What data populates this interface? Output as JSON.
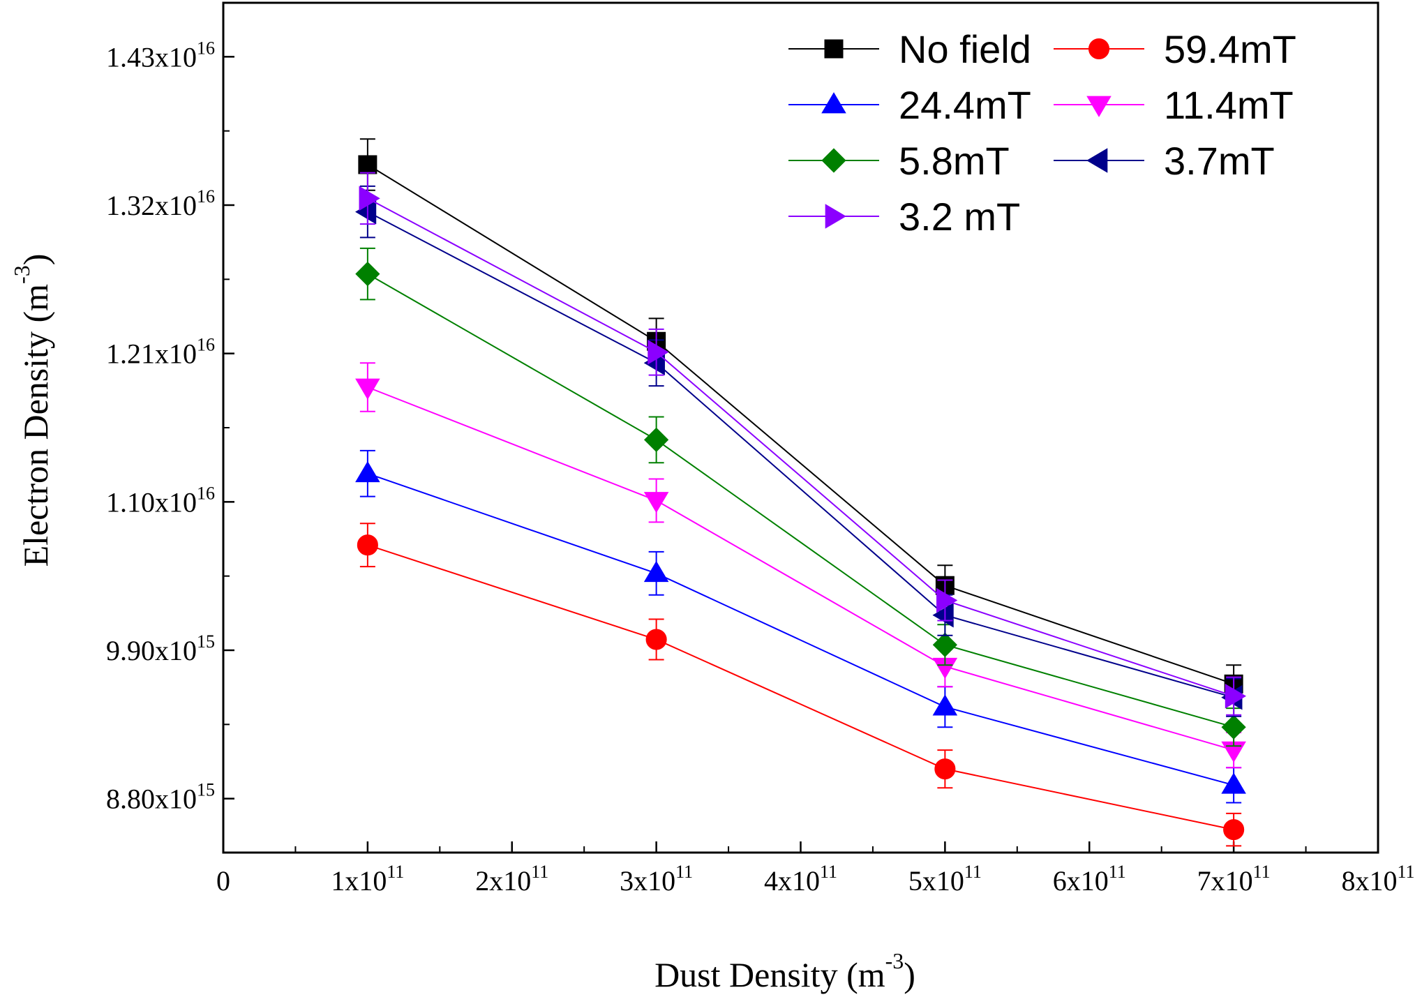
{
  "chart_data": {
    "type": "line",
    "title": "",
    "xlabel": {
      "base": "Dust Density (m",
      "sup": "-3",
      "close": ")"
    },
    "ylabel": {
      "base": "Electron Density (m",
      "sup": "-3",
      "close": ")"
    },
    "xlim": [
      0,
      800000000000.0
    ],
    "ylim": [
      8400000000000000.0,
      1.47e+16
    ],
    "x_ticks": [
      {
        "value": 0,
        "label": "0",
        "exp": ""
      },
      {
        "value": 100000000000.0,
        "label": "1x10",
        "exp": "11"
      },
      {
        "value": 200000000000.0,
        "label": "2x10",
        "exp": "11"
      },
      {
        "value": 300000000000.0,
        "label": "3x10",
        "exp": "11"
      },
      {
        "value": 400000000000.0,
        "label": "4x10",
        "exp": "11"
      },
      {
        "value": 500000000000.0,
        "label": "5x10",
        "exp": "11"
      },
      {
        "value": 600000000000.0,
        "label": "6x10",
        "exp": "11"
      },
      {
        "value": 700000000000.0,
        "label": "7x10",
        "exp": "11"
      },
      {
        "value": 800000000000.0,
        "label": "8x10",
        "exp": "11"
      }
    ],
    "y_ticks": [
      {
        "value": 8800000000000000.0,
        "label": "8.80x10",
        "exp": "15"
      },
      {
        "value": 9900000000000000.0,
        "label": "9.90x10",
        "exp": "15"
      },
      {
        "value": 1.1e+16,
        "label": "1.10x10",
        "exp": "16"
      },
      {
        "value": 1.21e+16,
        "label": "1.21x10",
        "exp": "16"
      },
      {
        "value": 1.32e+16,
        "label": "1.32x10",
        "exp": "16"
      },
      {
        "value": 1.43e+16,
        "label": "1.43x10",
        "exp": "16"
      }
    ],
    "x": [
      100000000000.0,
      300000000000.0,
      500000000000.0,
      700000000000.0
    ],
    "legend_position": "top-right",
    "series": [
      {
        "name": "No field",
        "color": "#000000",
        "marker": "square",
        "values": [
          1.35e+16,
          1.219e+16,
          1.038e+16,
          9650000000000000.0
        ],
        "errors": [
          190000000000000.0,
          170000000000000.0,
          150000000000000.0,
          140000000000000.0
        ]
      },
      {
        "name": "59.4mT",
        "color": "#ff0000",
        "marker": "circle",
        "values": [
          1.068e+16,
          9980000000000000.0,
          9020000000000000.0,
          8570000000000000.0
        ],
        "errors": [
          160000000000000.0,
          150000000000000.0,
          140000000000000.0,
          120000000000000.0
        ]
      },
      {
        "name": "24.4mT",
        "color": "#0000ff",
        "marker": "triangle-up",
        "values": [
          1.121e+16,
          1.047e+16,
          9480000000000000.0,
          8900000000000000.0
        ],
        "errors": [
          170000000000000.0,
          160000000000000.0,
          150000000000000.0,
          130000000000000.0
        ]
      },
      {
        "name": "11.4mT",
        "color": "#ff00ff",
        "marker": "triangle-down",
        "values": [
          1.185e+16,
          1.101e+16,
          9780000000000000.0,
          9160000000000000.0
        ],
        "errors": [
          180000000000000.0,
          160000000000000.0,
          150000000000000.0,
          130000000000000.0
        ]
      },
      {
        "name": "5.8mT",
        "color": "#008000",
        "marker": "diamond",
        "values": [
          1.269e+16,
          1.146e+16,
          9940000000000000.0,
          9330000000000000.0
        ],
        "errors": [
          190000000000000.0,
          170000000000000.0,
          150000000000000.0,
          140000000000000.0
        ]
      },
      {
        "name": "3.7mT",
        "color": "#00008b",
        "marker": "triangle-left",
        "values": [
          1.315e+16,
          1.203e+16,
          1.016e+16,
          9550000000000000.0
        ],
        "errors": [
          190000000000000.0,
          170000000000000.0,
          150000000000000.0,
          140000000000000.0
        ]
      },
      {
        "name": "3.2 mT",
        "color": "#8b00ff",
        "marker": "triangle-right",
        "values": [
          1.325e+16,
          1.211e+16,
          1.027e+16,
          9560000000000000.0
        ],
        "errors": [
          190000000000000.0,
          170000000000000.0,
          150000000000000.0,
          140000000000000.0
        ]
      }
    ]
  }
}
